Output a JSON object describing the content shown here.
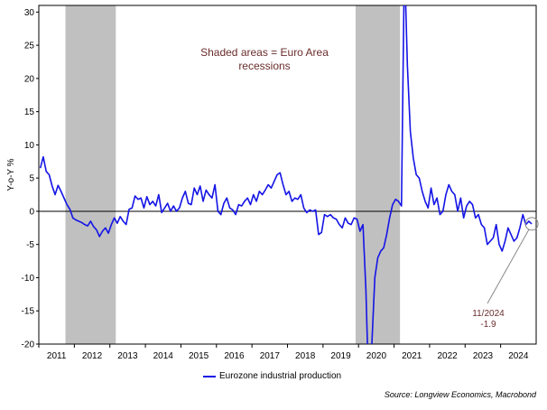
{
  "chart_data": {
    "type": "line",
    "ylabel": "Y-o-Y %",
    "ylim": [
      -20,
      31
    ],
    "yticks": [
      30,
      25,
      20,
      15,
      10,
      5,
      0,
      -5,
      -10,
      -15,
      -20
    ],
    "xlim": [
      "2011-01",
      "2024-12"
    ],
    "xticks": [
      "2011",
      "2012",
      "2013",
      "2014",
      "2015",
      "2016",
      "2017",
      "2018",
      "2019",
      "2020",
      "2021",
      "2022",
      "2023",
      "2024"
    ],
    "shaded_note": "Shaded areas = Euro Area\nrecessions",
    "recessions": [
      {
        "start": "2011-10",
        "end": "2013-03"
      },
      {
        "start": "2019-12",
        "end": "2021-03"
      }
    ],
    "annotation": {
      "label": "11/2024",
      "value": "-1.9",
      "x": "2024-11",
      "y": -1.9
    },
    "legend": "Eurozone industrial production",
    "source": "Source: Longview Economics, Macrobond",
    "series": [
      {
        "name": "Eurozone industrial production",
        "color": "#1414e6",
        "x": [
          "2011-01",
          "2011-02",
          "2011-03",
          "2011-04",
          "2011-05",
          "2011-06",
          "2011-07",
          "2011-08",
          "2011-09",
          "2011-10",
          "2011-11",
          "2011-12",
          "2012-01",
          "2012-02",
          "2012-03",
          "2012-04",
          "2012-05",
          "2012-06",
          "2012-07",
          "2012-08",
          "2012-09",
          "2012-10",
          "2012-11",
          "2012-12",
          "2013-01",
          "2013-02",
          "2013-03",
          "2013-04",
          "2013-05",
          "2013-06",
          "2013-07",
          "2013-08",
          "2013-09",
          "2013-10",
          "2013-11",
          "2013-12",
          "2014-01",
          "2014-02",
          "2014-03",
          "2014-04",
          "2014-05",
          "2014-06",
          "2014-07",
          "2014-08",
          "2014-09",
          "2014-10",
          "2014-11",
          "2014-12",
          "2015-01",
          "2015-02",
          "2015-03",
          "2015-04",
          "2015-05",
          "2015-06",
          "2015-07",
          "2015-08",
          "2015-09",
          "2015-10",
          "2015-11",
          "2015-12",
          "2016-01",
          "2016-02",
          "2016-03",
          "2016-04",
          "2016-05",
          "2016-06",
          "2016-07",
          "2016-08",
          "2016-09",
          "2016-10",
          "2016-11",
          "2016-12",
          "2017-01",
          "2017-02",
          "2017-03",
          "2017-04",
          "2017-05",
          "2017-06",
          "2017-07",
          "2017-08",
          "2017-09",
          "2017-10",
          "2017-11",
          "2017-12",
          "2018-01",
          "2018-02",
          "2018-03",
          "2018-04",
          "2018-05",
          "2018-06",
          "2018-07",
          "2018-08",
          "2018-09",
          "2018-10",
          "2018-11",
          "2018-12",
          "2019-01",
          "2019-02",
          "2019-03",
          "2019-04",
          "2019-05",
          "2019-06",
          "2019-07",
          "2019-08",
          "2019-09",
          "2019-10",
          "2019-11",
          "2019-12",
          "2020-01",
          "2020-02",
          "2020-03",
          "2020-04",
          "2020-05",
          "2020-06",
          "2020-07",
          "2020-08",
          "2020-09",
          "2020-10",
          "2020-11",
          "2020-12",
          "2021-01",
          "2021-02",
          "2021-03",
          "2021-04",
          "2021-05",
          "2021-06",
          "2021-07",
          "2021-08",
          "2021-09",
          "2021-10",
          "2021-11",
          "2021-12",
          "2022-01",
          "2022-02",
          "2022-03",
          "2022-04",
          "2022-05",
          "2022-06",
          "2022-07",
          "2022-08",
          "2022-09",
          "2022-10",
          "2022-11",
          "2022-12",
          "2023-01",
          "2023-02",
          "2023-03",
          "2023-04",
          "2023-05",
          "2023-06",
          "2023-07",
          "2023-08",
          "2023-09",
          "2023-10",
          "2023-11",
          "2023-12",
          "2024-01",
          "2024-02",
          "2024-03",
          "2024-04",
          "2024-05",
          "2024-06",
          "2024-07",
          "2024-08",
          "2024-09",
          "2024-10",
          "2024-11"
        ],
        "values": [
          6.5,
          8.2,
          6.0,
          5.5,
          3.8,
          2.5,
          3.9,
          3.0,
          2.0,
          1.0,
          0.3,
          -1.0,
          -1.3,
          -1.5,
          -1.7,
          -2.0,
          -2.2,
          -1.5,
          -2.3,
          -2.8,
          -3.8,
          -3.0,
          -2.5,
          -3.3,
          -2.0,
          -1.0,
          -1.8,
          -0.8,
          -1.5,
          -2.0,
          0.3,
          0.5,
          2.3,
          1.8,
          2.0,
          0.5,
          2.2,
          1.0,
          1.5,
          0.8,
          2.5,
          -0.2,
          0.5,
          1.2,
          0.0,
          0.8,
          0.0,
          0.5,
          2.0,
          3.0,
          1.2,
          1.0,
          3.5,
          2.5,
          3.8,
          1.5,
          3.2,
          2.5,
          2.0,
          4.0,
          0.0,
          -0.5,
          1.2,
          2.0,
          0.5,
          0.2,
          -0.5,
          1.0,
          0.8,
          1.5,
          2.0,
          1.0,
          2.5,
          1.5,
          3.0,
          2.5,
          3.2,
          4.0,
          3.5,
          4.5,
          5.5,
          5.8,
          4.0,
          2.5,
          3.0,
          1.5,
          2.0,
          1.8,
          2.5,
          0.5,
          -0.2,
          0.2,
          0.0,
          0.2,
          -3.5,
          -3.2,
          -0.5,
          -0.8,
          -0.5,
          -1.0,
          -1.2,
          -2.0,
          -2.5,
          -1.0,
          -1.8,
          -2.0,
          -1.0,
          -1.2,
          -3.0,
          -2.0,
          -12.0,
          -28.0,
          -20.0,
          -10.0,
          -7.0,
          -6.0,
          -5.5,
          -3.5,
          -1.0,
          1.0,
          1.8,
          1.5,
          0.8,
          38.0,
          22.0,
          12.0,
          8.0,
          5.5,
          5.0,
          3.0,
          1.5,
          0.5,
          3.5,
          1.0,
          2.0,
          -0.5,
          0.0,
          2.5,
          4.0,
          3.0,
          2.5,
          0.0,
          2.0,
          -1.0,
          0.8,
          1.5,
          1.0,
          -1.0,
          -0.5,
          -2.0,
          -2.5,
          -5.0,
          -4.5,
          -4.0,
          -2.0,
          -5.0,
          -6.0,
          -4.5,
          -2.5,
          -3.5,
          -4.5,
          -4.0,
          -2.5,
          -0.5,
          -2.0,
          -1.5,
          -1.9
        ]
      }
    ]
  }
}
